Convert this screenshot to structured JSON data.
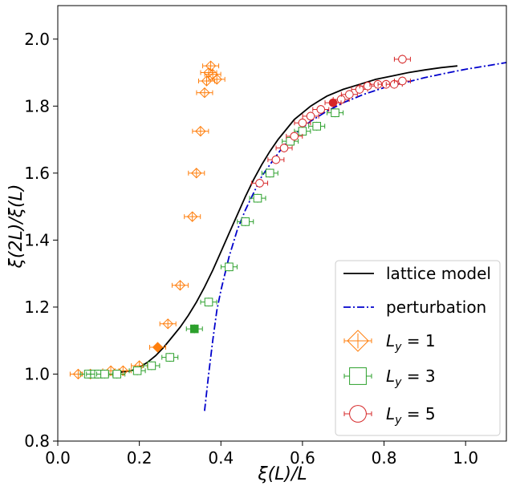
{
  "chart_data": {
    "type": "scatter",
    "xlabel": "ξ(L)/L",
    "ylabel": "ξ(2L)/ξ(L)",
    "xlim": [
      0.0,
      1.1
    ],
    "ylim": [
      0.8,
      2.1
    ],
    "xticks": [
      0.0,
      0.2,
      0.4,
      0.6,
      0.8,
      1.0
    ],
    "xtick_labels": [
      "0.0",
      "0.2",
      "0.4",
      "0.6",
      "0.8",
      "1.0"
    ],
    "yticks": [
      0.8,
      1.0,
      1.2,
      1.4,
      1.6,
      1.8,
      2.0
    ],
    "ytick_labels": [
      "0.8",
      "1.0",
      "1.2",
      "1.4",
      "1.6",
      "1.8",
      "2.0"
    ],
    "grid": false,
    "legend_position": "lower-right",
    "legend": [
      {
        "label": "lattice model",
        "kind": "line",
        "color": "#000000",
        "dash": "solid"
      },
      {
        "label": "perturbation",
        "kind": "line",
        "color": "#0000cc",
        "dash": "dashdot"
      },
      {
        "label": "L",
        "sub": "y",
        "suffix": " = 1",
        "kind": "marker",
        "marker": "diamond",
        "color": "#ff7f0e"
      },
      {
        "label": "L",
        "sub": "y",
        "suffix": " = 3",
        "kind": "marker",
        "marker": "square",
        "color": "#2ca02c"
      },
      {
        "label": "L",
        "sub": "y",
        "suffix": " = 5",
        "kind": "marker",
        "marker": "circle",
        "color": "#d62728"
      }
    ],
    "lines": [
      {
        "name": "lattice model",
        "color": "#000000",
        "dash": "solid",
        "x": [
          0.15,
          0.18,
          0.2,
          0.22,
          0.24,
          0.26,
          0.28,
          0.3,
          0.32,
          0.34,
          0.36,
          0.38,
          0.4,
          0.42,
          0.44,
          0.46,
          0.48,
          0.5,
          0.52,
          0.54,
          0.56,
          0.58,
          0.6,
          0.62,
          0.64,
          0.66,
          0.7,
          0.74,
          0.78,
          0.82,
          0.86,
          0.9,
          0.94,
          0.98
        ],
        "y": [
          1.005,
          1.01,
          1.02,
          1.035,
          1.055,
          1.08,
          1.11,
          1.14,
          1.175,
          1.215,
          1.26,
          1.31,
          1.365,
          1.42,
          1.475,
          1.53,
          1.58,
          1.625,
          1.665,
          1.7,
          1.73,
          1.76,
          1.78,
          1.8,
          1.815,
          1.83,
          1.85,
          1.865,
          1.88,
          1.89,
          1.9,
          1.908,
          1.915,
          1.92
        ]
      },
      {
        "name": "perturbation",
        "color": "#0000cc",
        "dash": "dashdot",
        "x": [
          0.36,
          0.37,
          0.38,
          0.39,
          0.4,
          0.42,
          0.44,
          0.46,
          0.48,
          0.5,
          0.52,
          0.55,
          0.58,
          0.62,
          0.66,
          0.7,
          0.75,
          0.8,
          0.85,
          0.9,
          0.95,
          1.0,
          1.05,
          1.1
        ],
        "y": [
          0.89,
          1.0,
          1.1,
          1.19,
          1.25,
          1.35,
          1.43,
          1.49,
          1.54,
          1.59,
          1.625,
          1.675,
          1.715,
          1.755,
          1.785,
          1.81,
          1.835,
          1.855,
          1.87,
          1.885,
          1.898,
          1.91,
          1.92,
          1.93
        ]
      }
    ],
    "series": [
      {
        "name": "Ly = 1",
        "marker": "diamond",
        "color": "#ff7f0e",
        "points": [
          [
            0.05,
            1.0
          ],
          [
            0.08,
            1.0
          ],
          [
            0.13,
            1.01
          ],
          [
            0.16,
            1.01
          ],
          [
            0.2,
            1.025
          ],
          [
            0.27,
            1.15
          ],
          [
            0.3,
            1.265
          ],
          [
            0.33,
            1.47
          ],
          [
            0.34,
            1.6
          ],
          [
            0.35,
            1.725
          ],
          [
            0.36,
            1.84
          ],
          [
            0.365,
            1.875
          ],
          [
            0.37,
            1.9
          ],
          [
            0.375,
            1.92
          ],
          [
            0.38,
            1.895
          ],
          [
            0.39,
            1.88
          ]
        ],
        "filled": [
          [
            0.245,
            1.08
          ]
        ]
      },
      {
        "name": "Ly = 3",
        "marker": "square",
        "color": "#2ca02c",
        "points": [
          [
            0.075,
            1.0
          ],
          [
            0.09,
            1.0
          ],
          [
            0.1,
            1.0
          ],
          [
            0.115,
            1.0
          ],
          [
            0.145,
            1.0
          ],
          [
            0.195,
            1.01
          ],
          [
            0.23,
            1.025
          ],
          [
            0.275,
            1.05
          ],
          [
            0.37,
            1.215
          ],
          [
            0.42,
            1.32
          ],
          [
            0.46,
            1.455
          ],
          [
            0.49,
            1.525
          ],
          [
            0.52,
            1.6
          ],
          [
            0.57,
            1.695
          ],
          [
            0.6,
            1.725
          ],
          [
            0.635,
            1.74
          ],
          [
            0.68,
            1.78
          ]
        ],
        "filled": [
          [
            0.335,
            1.135
          ]
        ]
      },
      {
        "name": "Ly = 5",
        "marker": "circle",
        "color": "#d62728",
        "points": [
          [
            0.495,
            1.57
          ],
          [
            0.535,
            1.64
          ],
          [
            0.555,
            1.675
          ],
          [
            0.58,
            1.71
          ],
          [
            0.6,
            1.75
          ],
          [
            0.62,
            1.77
          ],
          [
            0.645,
            1.79
          ],
          [
            0.695,
            1.82
          ],
          [
            0.715,
            1.835
          ],
          [
            0.74,
            1.85
          ],
          [
            0.76,
            1.86
          ],
          [
            0.785,
            1.865
          ],
          [
            0.805,
            1.865
          ],
          [
            0.825,
            1.865
          ],
          [
            0.845,
            1.875
          ],
          [
            0.845,
            1.94
          ]
        ],
        "filled": [
          [
            0.675,
            1.81
          ]
        ]
      }
    ]
  }
}
